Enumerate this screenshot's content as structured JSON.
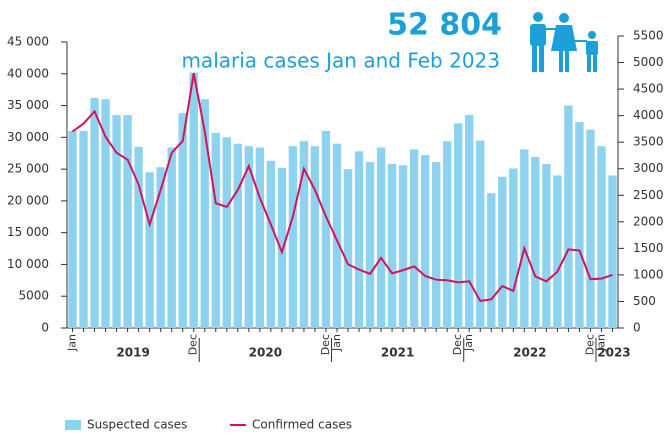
{
  "chart_data": {
    "type": "bar",
    "title": "52 804",
    "subtitle": "malaria cases Jan and Feb 2023",
    "categories": [
      "Jan",
      null,
      null,
      null,
      null,
      null,
      null,
      null,
      null,
      null,
      null,
      "Dec",
      null,
      null,
      null,
      null,
      null,
      null,
      null,
      null,
      null,
      null,
      null,
      "Dec",
      "Jan",
      null,
      null,
      null,
      null,
      null,
      null,
      null,
      null,
      null,
      null,
      "Dec",
      "Jan",
      null,
      null,
      null,
      null,
      null,
      null,
      null,
      null,
      null,
      null,
      "Dec",
      "Jan",
      null
    ],
    "years": [
      "2019",
      "2020",
      "2021",
      "2022",
      "2023"
    ],
    "series": [
      {
        "name": "Suspected cases",
        "color": "#8dd3f0",
        "values": [
          31000,
          31000,
          36200,
          36000,
          33500,
          33500,
          28500,
          24500,
          25300,
          28400,
          33800,
          40200,
          36000,
          30700,
          30000,
          29000,
          28600,
          28400,
          26300,
          25200,
          28600,
          29400,
          28600,
          31000,
          29000,
          25000,
          27800,
          26100,
          28400,
          25800,
          25600,
          28100,
          27200,
          26100,
          29400,
          32200,
          33500,
          29500,
          21200,
          23800,
          25100,
          28100,
          26900,
          25800,
          24000,
          35000,
          32400,
          31200,
          28600,
          24000
        ]
      },
      {
        "name": "Confirmed cases",
        "type": "line",
        "axis": "y2",
        "color": "#d6125b",
        "values": [
          3700,
          3850,
          4080,
          3600,
          3300,
          3170,
          2700,
          1950,
          2600,
          3300,
          3520,
          4800,
          3700,
          2350,
          2280,
          2600,
          3050,
          2450,
          1950,
          1430,
          2100,
          3000,
          2600,
          2100,
          1650,
          1200,
          1100,
          1020,
          1320,
          1030,
          1090,
          1160,
          980,
          910,
          900,
          860,
          880,
          510,
          540,
          790,
          700,
          1500,
          970,
          880,
          1060,
          1480,
          1460,
          920,
          930,
          1000
        ]
      }
    ],
    "ylim": [
      0,
      45000
    ],
    "yticks": [
      0,
      {
        "value": 5000,
        "label": "5000"
      },
      {
        "value": 10000,
        "label": "10 000"
      },
      {
        "value": 15000,
        "label": "15 000"
      },
      {
        "value": 20000,
        "label": "20 000"
      },
      {
        "value": 25000,
        "label": "25 000"
      },
      {
        "value": 30000,
        "label": "30 000"
      },
      {
        "value": 35000,
        "label": "35 000"
      },
      {
        "value": 40000,
        "label": "40 000"
      },
      {
        "value": 45000,
        "label": "45 000"
      }
    ],
    "y2lim": [
      0,
      5500
    ],
    "y2ticks": [
      0,
      500,
      1000,
      1500,
      2000,
      2500,
      3000,
      3500,
      4000,
      4500,
      5000,
      5500
    ],
    "legend": "bottom-left"
  }
}
